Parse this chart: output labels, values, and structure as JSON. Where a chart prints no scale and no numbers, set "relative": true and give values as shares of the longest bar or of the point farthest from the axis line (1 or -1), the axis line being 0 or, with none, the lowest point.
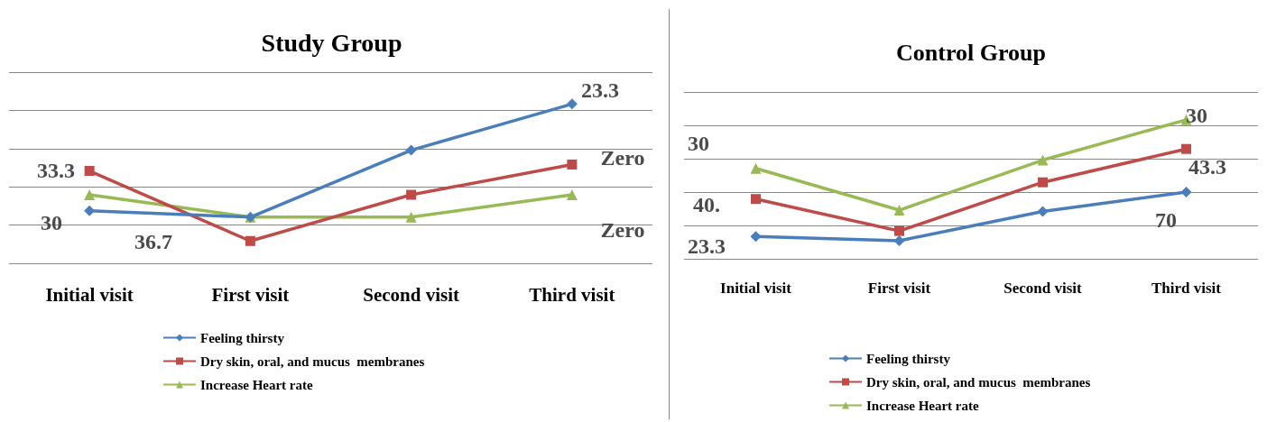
{
  "chart_data": [
    {
      "type": "line",
      "title": "Study Group",
      "categories": [
        "Initial visit",
        "First visit",
        "Second visit",
        "Third visit"
      ],
      "relative": true,
      "grid": "y",
      "legend": "bottom",
      "series": [
        {
          "name": "Feeling thirsty",
          "color": "#4a7ebb",
          "marker": "diamond",
          "values": [
            0.33,
            0.29,
            0.71,
            1
          ]
        },
        {
          "name": "Dry skin, oral, and mucus  membranes",
          "color": "#be4b48",
          "marker": "square",
          "values": [
            0.58,
            0.14,
            0.43,
            0.62
          ]
        },
        {
          "name": "Increase Heart rate",
          "color": "#98b954",
          "marker": "triangle",
          "values": [
            0.43,
            0.29,
            0.29,
            0.43
          ]
        }
      ],
      "annotations": [
        "30",
        "33.3",
        "36.7",
        "23.3",
        "Zero",
        "Zero"
      ]
    },
    {
      "type": "line",
      "title": "Control Group",
      "categories": [
        "Initial visit",
        "First visit",
        "Second visit",
        "Third visit"
      ],
      "relative": true,
      "grid": "y",
      "legend": "bottom",
      "series": [
        {
          "name": "Feeling thirsty",
          "color": "#4a7ebb",
          "marker": "diamond",
          "values": [
            0.16,
            0.13,
            0.34,
            0.48
          ]
        },
        {
          "name": "Dry skin, oral, and mucus  membranes",
          "color": "#be4b48",
          "marker": "square",
          "values": [
            0.43,
            0.2,
            0.55,
            0.79
          ]
        },
        {
          "name": "Increase Heart rate",
          "color": "#98b954",
          "marker": "triangle",
          "values": [
            0.65,
            0.35,
            0.71,
            1
          ]
        }
      ],
      "annotations": [
        "30",
        "40.",
        "23.3",
        "30",
        "43.3",
        "70"
      ]
    }
  ]
}
